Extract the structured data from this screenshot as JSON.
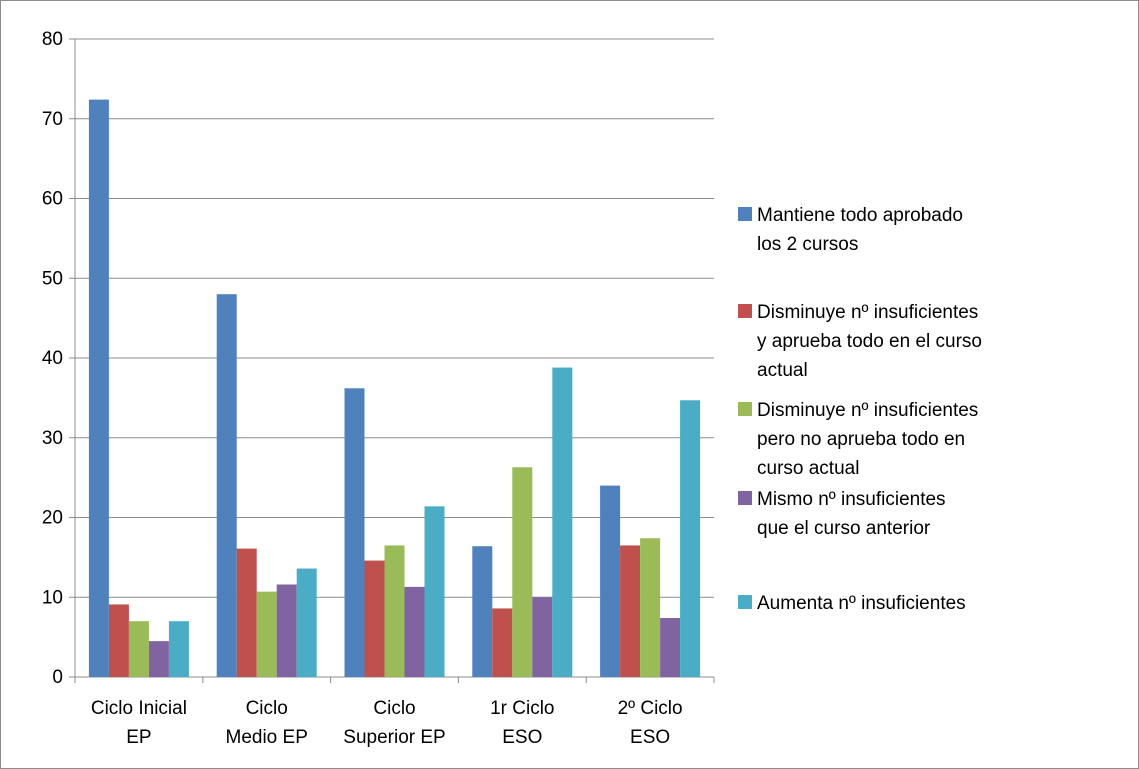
{
  "chart_data": {
    "type": "bar",
    "title": "",
    "xlabel": "",
    "ylabel": "",
    "ylim": [
      0,
      80
    ],
    "yticks": [
      0,
      10,
      20,
      30,
      40,
      50,
      60,
      70,
      80
    ],
    "grid": true,
    "legend_position": "right",
    "categories": [
      [
        "Ciclo Inicial",
        "EP"
      ],
      [
        "Ciclo",
        "Medio EP"
      ],
      [
        "Ciclo",
        "Superior EP"
      ],
      [
        "1r Ciclo",
        "ESO"
      ],
      [
        "2º Ciclo",
        "ESO"
      ]
    ],
    "series": [
      {
        "name": [
          "Mantiene todo aprobado",
          "los 2 cursos"
        ],
        "color": "#4F81BD",
        "values": [
          72.4,
          48.0,
          36.2,
          16.4,
          24.0
        ]
      },
      {
        "name": [
          "Disminuye nº insuficientes",
          "y aprueba todo en el curso",
          "actual"
        ],
        "color": "#C0504D",
        "values": [
          9.1,
          16.1,
          14.6,
          8.6,
          16.5
        ]
      },
      {
        "name": [
          "Disminuye nº insuficientes",
          "pero no aprueba todo en",
          "curso actual"
        ],
        "color": "#9BBB59",
        "values": [
          7.0,
          10.7,
          16.5,
          26.3,
          17.4
        ]
      },
      {
        "name": [
          "Mismo nº insuficientes",
          "que el curso anterior"
        ],
        "color": "#8064A2",
        "values": [
          4.5,
          11.6,
          11.3,
          10.0,
          7.4
        ]
      },
      {
        "name": [
          "Aumenta nº insuficientes"
        ],
        "color": "#4BACC6",
        "values": [
          7.0,
          13.6,
          21.4,
          38.8,
          34.7
        ]
      }
    ]
  }
}
